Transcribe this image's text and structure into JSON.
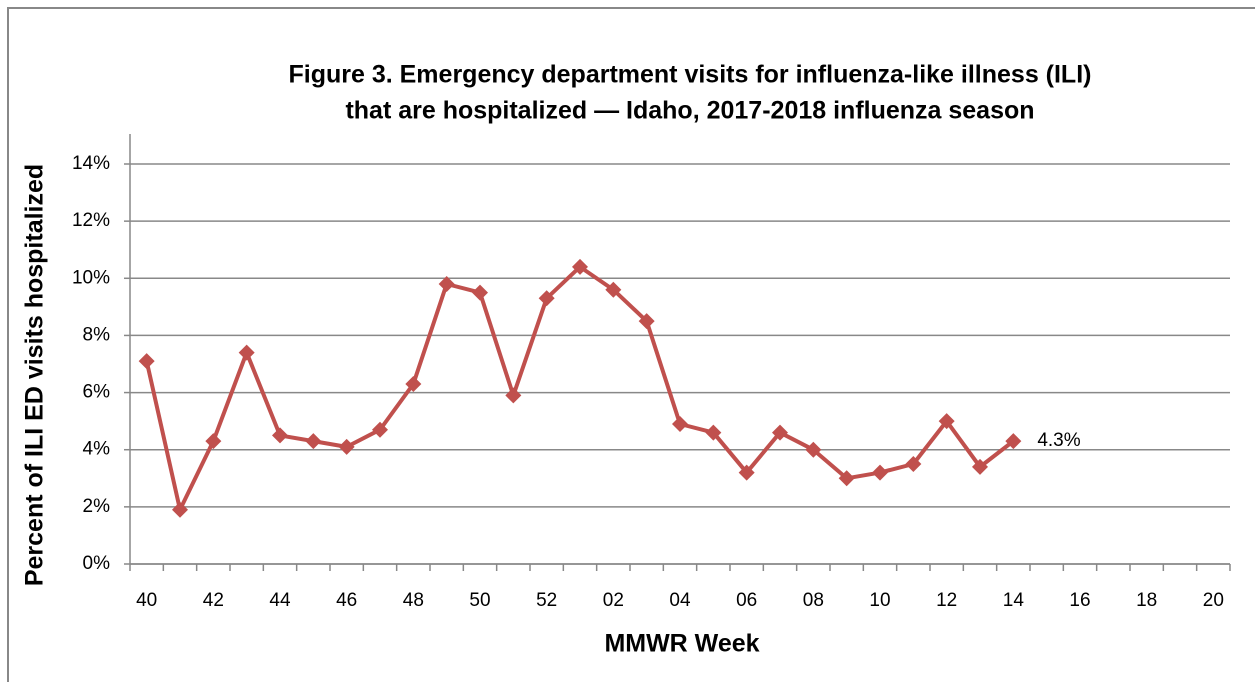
{
  "chart_data": {
    "type": "line",
    "title": [
      "Figure 3. Emergency department visits for influenza-like illness (ILI)",
      "that are hospitalized — Idaho, 2017-2018 influenza season"
    ],
    "x_label": "MMWR Week",
    "y_label": "Percent of  ILI ED visits hospitalized",
    "categories": [
      "40",
      null,
      "42",
      null,
      "44",
      null,
      "46",
      null,
      "48",
      null,
      "50",
      null,
      "52",
      null,
      "02",
      null,
      "04",
      null,
      "06",
      null,
      "08",
      null,
      "10",
      null,
      "12",
      null,
      "14",
      null,
      "16",
      null,
      "18",
      null,
      "20"
    ],
    "series": [
      {
        "name": "Percent hospitalized",
        "color": "#c0504d",
        "values": [
          7.1,
          1.9,
          4.3,
          7.4,
          4.5,
          4.3,
          4.1,
          4.7,
          6.3,
          9.8,
          9.5,
          5.9,
          9.3,
          10.4,
          9.6,
          8.5,
          4.9,
          4.6,
          3.2,
          4.6,
          4.0,
          3.0,
          3.2,
          3.5,
          5.0,
          3.4,
          4.3,
          null,
          null,
          null,
          null,
          null,
          null
        ],
        "value_labels": [
          null,
          null,
          null,
          null,
          null,
          null,
          null,
          null,
          null,
          null,
          null,
          null,
          null,
          null,
          null,
          null,
          null,
          null,
          null,
          null,
          null,
          null,
          null,
          null,
          null,
          null,
          "4.3%",
          null,
          null,
          null,
          null,
          null,
          null
        ]
      }
    ],
    "ylim": [
      0,
      14
    ],
    "yticks": [
      {
        "value": 0,
        "label": "0%"
      },
      {
        "value": 2,
        "label": "2%"
      },
      {
        "value": 4,
        "label": "4%"
      },
      {
        "value": 6,
        "label": "6%"
      },
      {
        "value": 8,
        "label": "8%"
      },
      {
        "value": 10,
        "label": "10%"
      },
      {
        "value": 12,
        "label": "12%"
      },
      {
        "value": 14,
        "label": "14%"
      }
    ],
    "grid": true
  }
}
